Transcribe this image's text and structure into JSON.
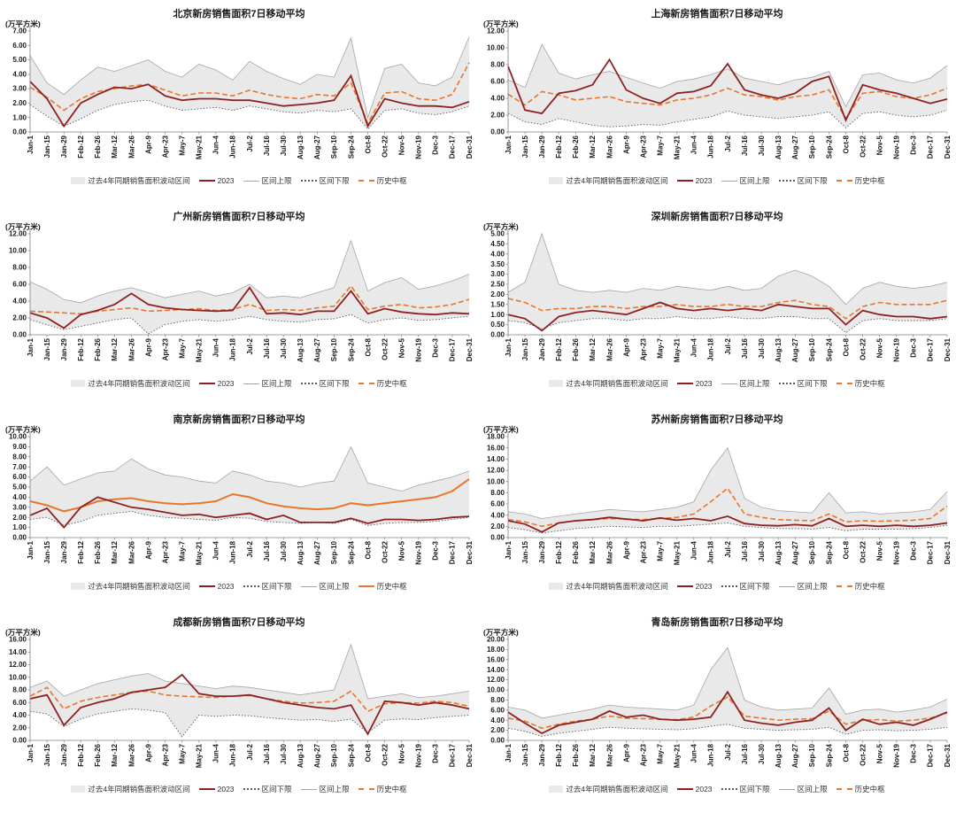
{
  "page": {
    "background": "#ffffff"
  },
  "x_labels": [
    "Jan-1",
    "Jan-15",
    "Jan-29",
    "Feb-12",
    "Feb-26",
    "Mar-12",
    "Mar-26",
    "Apr-9",
    "Apr-23",
    "May-7",
    "May-21",
    "Jun-4",
    "Jun-18",
    "Jul-2",
    "Jul-16",
    "Jul-30",
    "Aug-13",
    "Aug-27",
    "Sep-10",
    "Sep-24",
    "Oct-8",
    "Oct-22",
    "Nov-5",
    "Nov-19",
    "Dec-3",
    "Dec-17",
    "Dec-31"
  ],
  "legend_labels": {
    "band": "过去4年同期销售面积波动区间",
    "y2023": "2023",
    "upper": "区间上限",
    "lower": "区间下限",
    "center": "历史中枢"
  },
  "colors": {
    "band": "#e9e9e9",
    "upper": "#a6a6a6",
    "lower": "#595959",
    "center": "#e8762c",
    "y2023": "#8f2020",
    "axis": "#7f7f7f"
  },
  "chart_data": [
    {
      "id": "beijing",
      "type": "line",
      "title": "北京新房销售面积7日移动平均",
      "ylabel": "(万平方米)",
      "ymax": 7,
      "ystep": 1,
      "center_style": "dashed",
      "legend_order": [
        "band",
        "y2023",
        "upper",
        "lower",
        "center"
      ],
      "series": {
        "upper": [
          5.3,
          3.4,
          2.6,
          3.6,
          4.5,
          4.2,
          4.6,
          5.0,
          4.2,
          3.8,
          4.7,
          4.3,
          3.6,
          4.9,
          4.2,
          3.7,
          3.3,
          4.0,
          3.8,
          6.5,
          1.0,
          4.4,
          4.7,
          3.4,
          3.2,
          3.8,
          6.6
        ],
        "lower": [
          1.9,
          1.1,
          0.4,
          0.9,
          1.5,
          1.9,
          2.1,
          2.2,
          1.8,
          1.5,
          1.6,
          1.7,
          1.5,
          1.8,
          1.6,
          1.4,
          1.3,
          1.5,
          1.4,
          1.6,
          0.2,
          1.5,
          1.6,
          1.3,
          1.2,
          1.4,
          1.8
        ],
        "center": [
          3.1,
          2.4,
          1.5,
          2.3,
          2.8,
          3.0,
          3.2,
          3.3,
          2.9,
          2.5,
          2.7,
          2.7,
          2.5,
          2.9,
          2.6,
          2.4,
          2.3,
          2.6,
          2.5,
          3.4,
          0.6,
          2.7,
          2.8,
          2.3,
          2.2,
          2.6,
          4.8
        ],
        "y2023": [
          3.5,
          2.3,
          0.4,
          2.0,
          2.6,
          3.1,
          3.0,
          3.3,
          2.5,
          2.2,
          2.3,
          2.3,
          2.2,
          2.2,
          2.0,
          1.8,
          1.9,
          2.0,
          2.2,
          3.9,
          0.4,
          2.3,
          2.0,
          1.8,
          1.8,
          1.7,
          2.1
        ]
      }
    },
    {
      "id": "shanghai",
      "type": "line",
      "title": "上海新房销售面积7日移动平均",
      "ylabel": "(万平方米)",
      "ymax": 12,
      "ystep": 2,
      "center_style": "dashed",
      "legend_order": [
        "band",
        "y2023",
        "upper",
        "lower",
        "center"
      ],
      "series": {
        "upper": [
          6.2,
          5.3,
          10.4,
          7.0,
          6.3,
          6.8,
          7.2,
          6.5,
          5.8,
          5.2,
          6.0,
          6.3,
          6.8,
          7.5,
          6.4,
          6.0,
          5.6,
          6.2,
          6.5,
          7.2,
          3.0,
          6.8,
          7.0,
          6.2,
          5.8,
          6.4,
          7.9
        ],
        "lower": [
          2.2,
          1.2,
          0.9,
          1.6,
          1.2,
          0.8,
          0.6,
          0.7,
          0.9,
          0.8,
          1.2,
          1.5,
          1.8,
          2.5,
          2.0,
          1.8,
          1.6,
          1.8,
          2.0,
          2.4,
          0.5,
          2.2,
          2.4,
          2.0,
          1.8,
          2.0,
          2.6
        ],
        "center": [
          4.5,
          3.2,
          4.8,
          4.4,
          3.8,
          4.0,
          4.2,
          3.6,
          3.4,
          3.2,
          3.8,
          4.0,
          4.4,
          5.2,
          4.4,
          4.2,
          3.8,
          4.2,
          4.4,
          5.0,
          1.6,
          4.6,
          4.8,
          4.2,
          4.0,
          4.4,
          5.2
        ],
        "y2023": [
          7.8,
          2.6,
          2.2,
          4.6,
          4.9,
          5.6,
          8.6,
          5.0,
          4.0,
          3.4,
          4.6,
          4.8,
          5.5,
          8.1,
          5.0,
          4.4,
          4.0,
          4.6,
          6.0,
          6.6,
          1.4,
          5.6,
          5.0,
          4.6,
          4.0,
          3.4,
          3.9
        ]
      }
    },
    {
      "id": "guangzhou",
      "type": "line",
      "title": "广州新房销售面积7日移动平均",
      "ylabel": "(万平方米)",
      "ymax": 12,
      "ystep": 2,
      "center_style": "dashed",
      "legend_order": [
        "band",
        "y2023",
        "upper",
        "lower",
        "center"
      ],
      "series": {
        "upper": [
          6.3,
          5.4,
          4.2,
          3.8,
          4.6,
          5.2,
          5.6,
          5.0,
          4.4,
          4.8,
          5.2,
          4.6,
          5.0,
          6.0,
          4.4,
          4.6,
          4.4,
          5.0,
          5.6,
          11.2,
          5.2,
          6.2,
          6.8,
          5.4,
          5.8,
          6.4,
          7.2
        ],
        "lower": [
          1.8,
          1.2,
          0.6,
          1.0,
          1.4,
          1.8,
          2.0,
          0.1,
          1.2,
          1.6,
          1.8,
          1.6,
          1.8,
          2.2,
          1.8,
          1.6,
          1.5,
          1.8,
          1.9,
          2.4,
          1.4,
          1.8,
          2.0,
          1.7,
          1.8,
          2.0,
          2.2
        ],
        "center": [
          2.8,
          2.7,
          2.6,
          2.5,
          2.8,
          3.0,
          3.2,
          2.8,
          2.9,
          3.0,
          3.1,
          2.9,
          3.0,
          3.6,
          2.9,
          3.0,
          2.9,
          3.2,
          3.4,
          5.8,
          3.0,
          3.4,
          3.6,
          3.2,
          3.3,
          3.6,
          4.2
        ],
        "y2023": [
          2.6,
          2.0,
          0.8,
          2.4,
          2.9,
          3.6,
          4.9,
          3.6,
          3.2,
          3.0,
          2.9,
          2.8,
          2.9,
          5.6,
          2.5,
          2.6,
          2.4,
          2.8,
          2.8,
          5.2,
          2.5,
          3.1,
          2.7,
          2.5,
          2.4,
          2.6,
          2.5
        ]
      }
    },
    {
      "id": "shenzhen",
      "type": "line",
      "title": "深圳新房销售面积7日移动平均",
      "ylabel": "(万平方米)",
      "ymax": 5,
      "ystep": 0.5,
      "center_style": "dashed",
      "legend_order": [
        "band",
        "y2023",
        "upper",
        "lower",
        "center"
      ],
      "series": {
        "upper": [
          2.1,
          2.6,
          5.0,
          2.5,
          2.2,
          2.1,
          2.2,
          2.1,
          2.3,
          2.2,
          2.4,
          2.3,
          2.2,
          2.4,
          2.2,
          2.3,
          2.9,
          3.2,
          2.9,
          2.4,
          1.5,
          2.3,
          2.6,
          2.4,
          2.3,
          2.4,
          2.6
        ],
        "lower": [
          0.7,
          0.6,
          0.3,
          0.6,
          0.7,
          0.8,
          0.8,
          0.7,
          0.8,
          0.8,
          0.9,
          0.8,
          0.8,
          0.9,
          0.8,
          0.8,
          0.9,
          0.9,
          0.8,
          0.8,
          0.1,
          0.7,
          0.8,
          0.7,
          0.7,
          0.7,
          0.8
        ],
        "center": [
          1.8,
          1.6,
          1.2,
          1.3,
          1.3,
          1.4,
          1.4,
          1.3,
          1.4,
          1.4,
          1.5,
          1.4,
          1.4,
          1.5,
          1.4,
          1.4,
          1.6,
          1.7,
          1.5,
          1.4,
          0.8,
          1.4,
          1.6,
          1.5,
          1.5,
          1.5,
          1.7
        ],
        "y2023": [
          1.0,
          0.8,
          0.2,
          0.9,
          1.1,
          1.2,
          1.1,
          1.0,
          1.3,
          1.6,
          1.3,
          1.2,
          1.3,
          1.2,
          1.3,
          1.2,
          1.5,
          1.4,
          1.3,
          1.3,
          0.5,
          1.2,
          1.0,
          0.9,
          0.9,
          0.8,
          0.9
        ]
      }
    },
    {
      "id": "nanjing",
      "type": "line",
      "title": "南京新房销售面积7日移动平均",
      "ylabel": "(万平方米)",
      "ymax": 10,
      "ystep": 1,
      "center_style": "solid",
      "legend_order": [
        "band",
        "y2023",
        "lower",
        "upper",
        "center"
      ],
      "series": {
        "upper": [
          5.6,
          7.0,
          5.2,
          5.8,
          6.4,
          6.6,
          7.8,
          6.8,
          6.2,
          6.0,
          5.6,
          5.4,
          6.6,
          6.2,
          5.6,
          5.4,
          5.0,
          5.4,
          5.6,
          9.0,
          5.4,
          5.0,
          4.6,
          5.2,
          5.6,
          6.0,
          6.6
        ],
        "lower": [
          1.8,
          2.0,
          1.2,
          1.6,
          2.2,
          2.4,
          2.6,
          2.2,
          2.0,
          1.9,
          1.8,
          1.7,
          2.0,
          1.9,
          1.6,
          1.5,
          1.4,
          1.5,
          1.4,
          1.8,
          1.2,
          1.4,
          1.5,
          1.5,
          1.6,
          1.8,
          2.0
        ],
        "center": [
          3.6,
          3.2,
          2.6,
          3.0,
          3.6,
          3.8,
          3.9,
          3.6,
          3.4,
          3.3,
          3.4,
          3.6,
          4.3,
          4.0,
          3.4,
          3.1,
          2.9,
          2.8,
          2.9,
          3.4,
          3.2,
          3.4,
          3.6,
          3.8,
          4.0,
          4.6,
          5.8
        ],
        "y2023": [
          2.2,
          2.9,
          1.0,
          3.0,
          4.0,
          3.5,
          3.0,
          2.8,
          2.5,
          2.2,
          2.3,
          2.0,
          2.2,
          2.4,
          1.8,
          2.2,
          1.5,
          1.5,
          1.5,
          1.9,
          1.4,
          1.8,
          1.8,
          1.7,
          1.8,
          2.0,
          2.1
        ]
      }
    },
    {
      "id": "suzhou",
      "type": "line",
      "title": "苏州新房销售面积7日移动平均",
      "ylabel": "(万平方米)",
      "ymax": 18,
      "ystep": 2,
      "center_style": "dashed",
      "legend_order": [
        "band",
        "y2023",
        "lower",
        "upper",
        "center"
      ],
      "series": {
        "upper": [
          4.6,
          4.2,
          3.4,
          3.8,
          4.2,
          4.6,
          5.0,
          4.8,
          4.6,
          5.0,
          5.4,
          6.4,
          12.0,
          16.0,
          7.0,
          5.4,
          4.8,
          4.6,
          4.4,
          8.0,
          4.4,
          4.6,
          4.2,
          4.4,
          4.6,
          5.0,
          8.2
        ],
        "lower": [
          1.8,
          1.4,
          0.8,
          1.2,
          1.6,
          1.8,
          2.0,
          1.9,
          1.8,
          2.0,
          2.0,
          2.2,
          2.4,
          2.6,
          2.0,
          1.8,
          1.6,
          1.6,
          1.5,
          1.8,
          1.2,
          1.5,
          1.5,
          1.5,
          1.6,
          1.8,
          2.2
        ],
        "center": [
          3.2,
          2.8,
          2.0,
          2.6,
          3.0,
          3.2,
          3.4,
          3.3,
          3.2,
          3.4,
          3.6,
          4.2,
          6.4,
          8.8,
          4.2,
          3.6,
          3.2,
          3.1,
          3.0,
          4.2,
          2.8,
          3.0,
          2.9,
          3.0,
          3.1,
          3.4,
          5.6
        ],
        "y2023": [
          3.0,
          2.4,
          1.0,
          2.6,
          3.0,
          3.2,
          3.6,
          3.3,
          3.0,
          3.5,
          3.1,
          3.4,
          3.0,
          3.8,
          2.5,
          2.2,
          2.1,
          2.3,
          2.1,
          3.4,
          2.0,
          2.2,
          2.0,
          2.2,
          2.0,
          2.2,
          2.6
        ]
      }
    },
    {
      "id": "chengdu",
      "type": "line",
      "title": "成都新房销售面积7日移动平均",
      "ylabel": "(万平方米)",
      "ymax": 16,
      "ystep": 2,
      "center_style": "dashed",
      "legend_order": [
        "band",
        "y2023",
        "lower",
        "upper",
        "center"
      ],
      "series": {
        "upper": [
          8.4,
          9.4,
          7.0,
          8.0,
          9.0,
          9.6,
          10.2,
          10.6,
          9.4,
          9.0,
          8.6,
          8.2,
          8.6,
          8.4,
          8.0,
          7.6,
          7.2,
          7.6,
          8.0,
          15.2,
          6.6,
          7.0,
          7.4,
          6.8,
          7.0,
          7.4,
          7.8
        ],
        "lower": [
          4.6,
          4.2,
          2.2,
          3.4,
          4.2,
          4.6,
          5.0,
          4.8,
          4.4,
          0.6,
          4.0,
          3.8,
          4.0,
          3.9,
          3.6,
          3.4,
          3.2,
          3.3,
          3.0,
          3.4,
          1.2,
          3.2,
          3.4,
          3.3,
          3.6,
          3.8,
          4.0
        ],
        "center": [
          7.0,
          8.4,
          5.0,
          6.2,
          6.8,
          7.2,
          7.6,
          7.8,
          7.2,
          7.0,
          6.9,
          6.8,
          7.0,
          7.1,
          6.6,
          6.2,
          5.9,
          6.0,
          6.2,
          7.8,
          4.6,
          5.8,
          6.0,
          5.9,
          6.2,
          6.0,
          5.4
        ],
        "y2023": [
          6.6,
          7.2,
          2.4,
          5.2,
          6.0,
          6.6,
          7.6,
          8.0,
          8.4,
          10.4,
          7.4,
          7.0,
          7.0,
          7.2,
          6.6,
          6.0,
          5.6,
          5.2,
          5.0,
          5.6,
          1.0,
          6.2,
          6.0,
          5.6,
          6.0,
          5.6,
          5.0
        ]
      }
    },
    {
      "id": "qingdao",
      "type": "line",
      "title": "青岛新房销售面积7日移动平均",
      "ylabel": "(万平方米)",
      "ymax": 20,
      "ystep": 2,
      "center_style": "dashed",
      "legend_order": [
        "band",
        "y2023",
        "lower",
        "upper",
        "center"
      ],
      "series": {
        "upper": [
          6.6,
          6.0,
          4.4,
          5.0,
          5.6,
          6.2,
          7.0,
          6.6,
          6.4,
          6.2,
          6.0,
          7.0,
          14.0,
          18.4,
          8.0,
          6.6,
          6.0,
          6.2,
          6.4,
          10.4,
          5.2,
          6.0,
          6.2,
          5.6,
          6.0,
          6.6,
          8.2
        ],
        "lower": [
          2.4,
          1.8,
          0.8,
          1.4,
          1.8,
          2.2,
          2.6,
          2.4,
          2.3,
          2.2,
          2.1,
          2.3,
          2.8,
          3.2,
          2.4,
          2.2,
          2.0,
          2.1,
          2.2,
          2.6,
          1.2,
          2.0,
          2.1,
          1.9,
          2.0,
          2.2,
          2.6
        ],
        "center": [
          4.4,
          3.8,
          2.4,
          3.2,
          3.8,
          4.2,
          4.8,
          4.4,
          4.3,
          4.2,
          4.1,
          4.6,
          6.8,
          8.6,
          4.8,
          4.4,
          4.0,
          4.2,
          4.3,
          5.8,
          3.2,
          4.0,
          4.1,
          3.8,
          4.0,
          4.4,
          5.4
        ],
        "y2023": [
          5.6,
          3.4,
          1.4,
          3.0,
          3.6,
          4.2,
          5.8,
          4.6,
          5.0,
          4.2,
          4.0,
          4.2,
          4.6,
          9.6,
          4.0,
          3.4,
          3.0,
          3.6,
          4.0,
          6.4,
          2.0,
          4.2,
          3.2,
          3.6,
          3.0,
          4.2,
          5.6
        ]
      }
    }
  ]
}
